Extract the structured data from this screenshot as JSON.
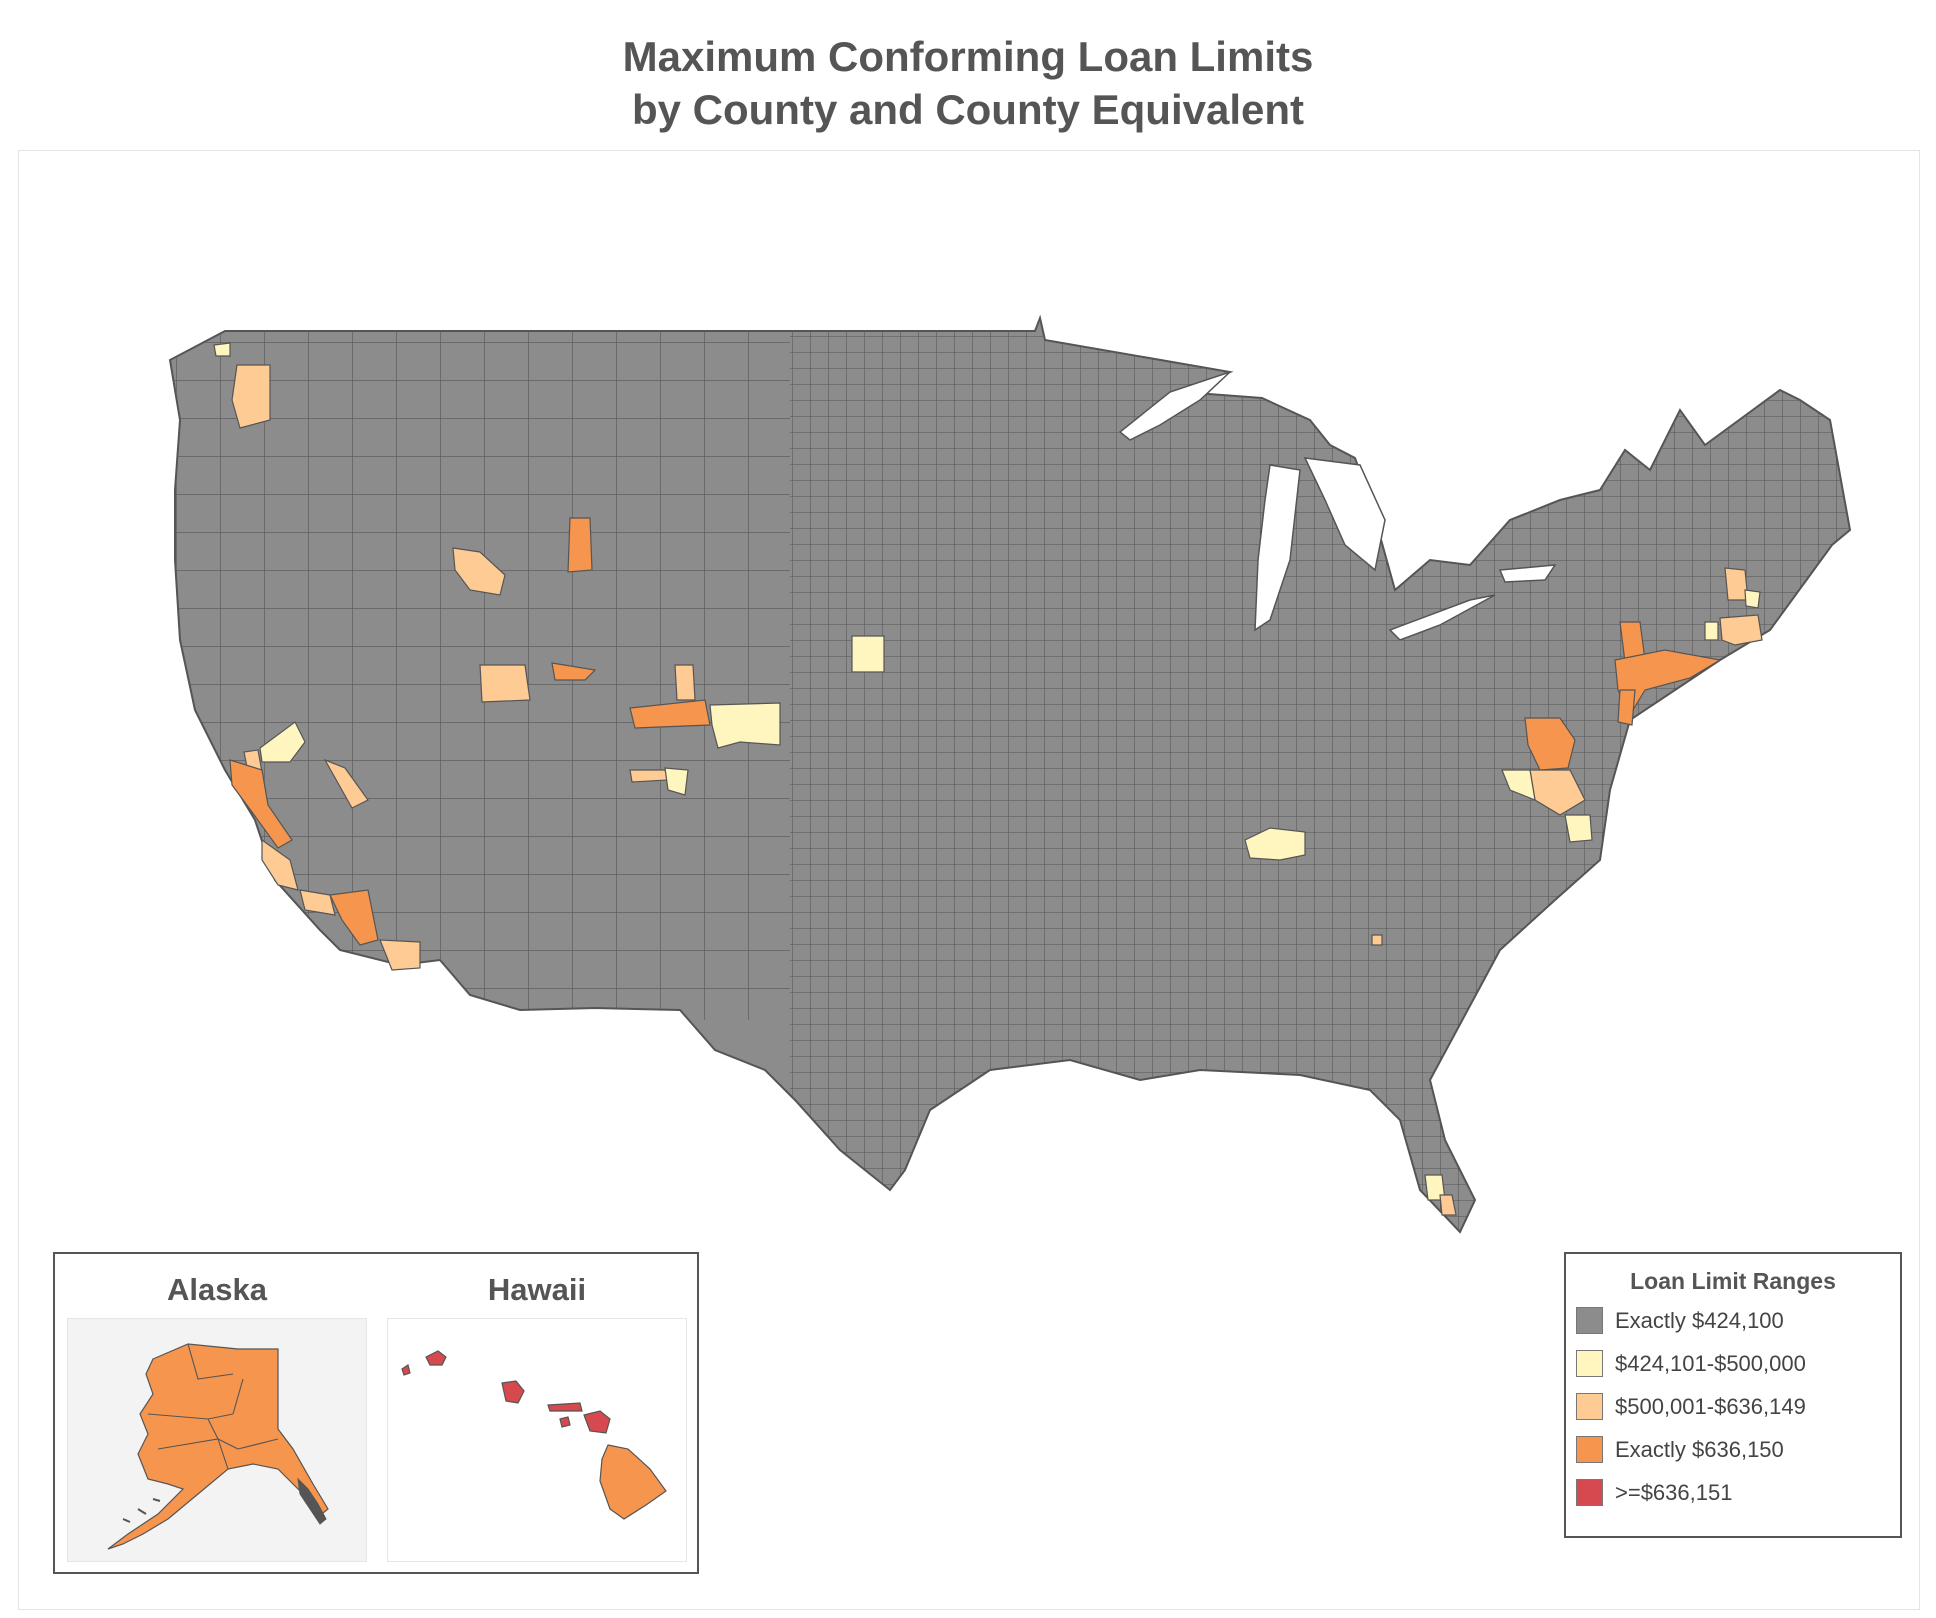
{
  "title": {
    "line1": "Maximum Conforming Loan Limits",
    "line2": "by County and County Equivalent"
  },
  "insets": {
    "alaska": {
      "label": "Alaska",
      "category": "exactly_636150"
    },
    "hawaii": {
      "label": "Hawaii",
      "islands": [
        {
          "category": "gte_636151"
        },
        {
          "category": "gte_636151"
        },
        {
          "category": "gte_636151"
        },
        {
          "category": "gte_636151"
        },
        {
          "category": "gte_636151"
        },
        {
          "category": "exactly_636150"
        }
      ]
    }
  },
  "legend": {
    "title": "Loan Limit Ranges",
    "items": [
      {
        "key": "exactly_424100",
        "label": "Exactly $424,100",
        "color": "#8c8c8c"
      },
      {
        "key": "range_424101_500000",
        "label": "$424,101-$500,000",
        "color": "#fff6bf"
      },
      {
        "key": "range_500001_636149",
        "label": "$500,001-$636,149",
        "color": "#fdcb93"
      },
      {
        "key": "exactly_636150",
        "label": "Exactly $636,150",
        "color": "#f6954d"
      },
      {
        "key": "gte_636151",
        "label": ">=$636,151",
        "color": "#d64a4f"
      }
    ]
  },
  "colors": {
    "background": "#ffffff",
    "county_border": "#4d4d4d",
    "title_text": "#555555",
    "alaska_background": "#f3f3f3"
  },
  "highlighted_areas": [
    {
      "region": "Seattle, WA",
      "category": "range_500001_636149"
    },
    {
      "region": "Bellingham, WA",
      "category": "range_424101_500000"
    },
    {
      "region": "Teton County, WY",
      "category": "exactly_636150"
    },
    {
      "region": "Blaine County, ID",
      "category": "range_500001_636149"
    },
    {
      "region": "Summit County, UT",
      "category": "exactly_636150"
    },
    {
      "region": "Salt Lake City area, UT",
      "category": "range_500001_636149"
    },
    {
      "region": "Denver / Boulder, CO",
      "category": "range_424101_500000"
    },
    {
      "region": "Eagle / Pitkin / Summit, CO",
      "category": "exactly_636150"
    },
    {
      "region": "Routt County, CO",
      "category": "range_500001_636149"
    },
    {
      "region": "San Miguel County, CO",
      "category": "range_500001_636149"
    },
    {
      "region": "Cheyenne area, WY",
      "category": "range_424101_500000"
    },
    {
      "region": "Sacramento area, CA",
      "category": "range_424101_500000"
    },
    {
      "region": "San Francisco Bay Area, CA",
      "category": "exactly_636150"
    },
    {
      "region": "Central Coast, CA",
      "category": "range_500001_636149"
    },
    {
      "region": "Los Angeles / Orange, CA",
      "category": "exactly_636150"
    },
    {
      "region": "San Diego, CA",
      "category": "range_500001_636149"
    },
    {
      "region": "Mono County, CA",
      "category": "range_500001_636149"
    },
    {
      "region": "Nashville, TN",
      "category": "range_424101_500000"
    },
    {
      "region": "Athens area, GA",
      "category": "range_500001_636149"
    },
    {
      "region": "Washington, DC area",
      "category": "exactly_636150"
    },
    {
      "region": "Virginia suburbs",
      "category": "range_500001_636149"
    },
    {
      "region": "Richmond / Tidewater, VA",
      "category": "range_424101_500000"
    },
    {
      "region": "New York City area",
      "category": "exactly_636150"
    },
    {
      "region": "Boston area, MA",
      "category": "range_500001_636149"
    },
    {
      "region": "New Hampshire seacoast",
      "category": "range_500001_636149"
    },
    {
      "region": "Southern Maine",
      "category": "range_424101_500000"
    },
    {
      "region": "Miami / Monroe, FL",
      "category": "range_424101_500000"
    },
    {
      "region": "Hudson Valley, NY",
      "category": "exactly_636150"
    }
  ]
}
